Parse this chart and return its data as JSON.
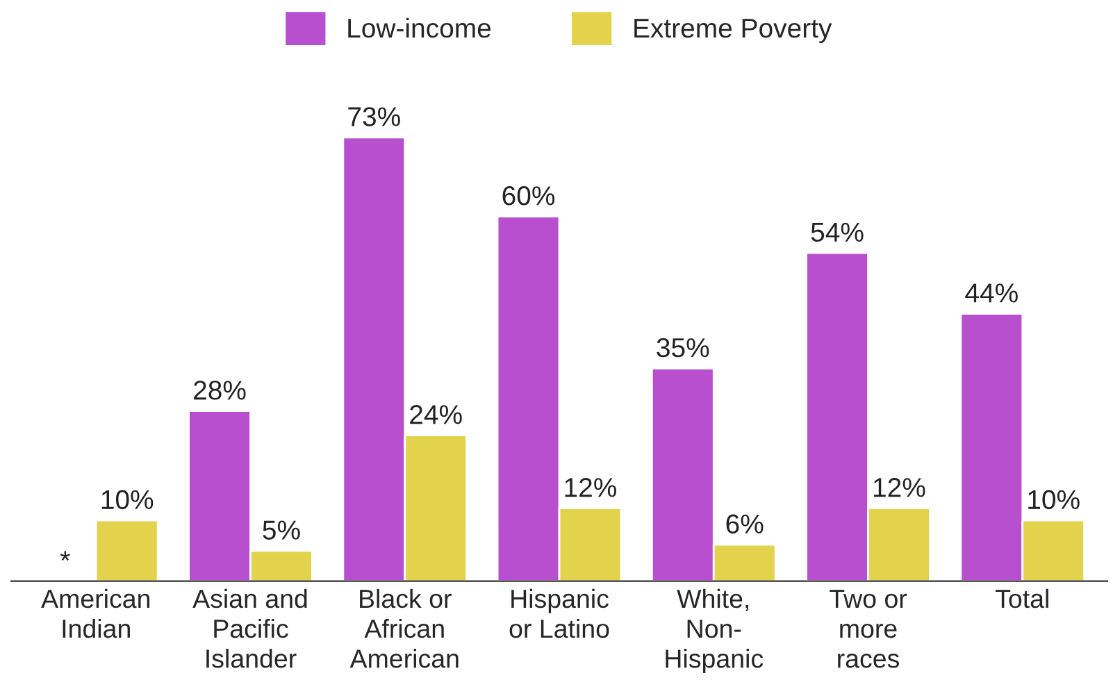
{
  "chart_data": {
    "type": "bar",
    "categories": [
      "American\nIndian",
      "Asian and\nPacific\nIslander",
      "Black or\nAfrican\nAmerican",
      "Hispanic\nor Latino",
      "White,\nNon-\nHispanic",
      "Two or\nmore\nraces",
      "Total"
    ],
    "series": [
      {
        "name": "Low-income",
        "color": "#b84fcf",
        "values": [
          null,
          28,
          73,
          60,
          35,
          54,
          44
        ],
        "value_labels": [
          "*",
          "28%",
          "73%",
          "60%",
          "35%",
          "54%",
          "44%"
        ]
      },
      {
        "name": "Extreme Poverty",
        "color": "#e3d34c",
        "values": [
          10,
          5,
          24,
          12,
          6,
          12,
          10
        ],
        "value_labels": [
          "10%",
          "5%",
          "24%",
          "12%",
          "6%",
          "12%",
          "10%"
        ]
      }
    ],
    "legend": "top",
    "grid": false
  }
}
